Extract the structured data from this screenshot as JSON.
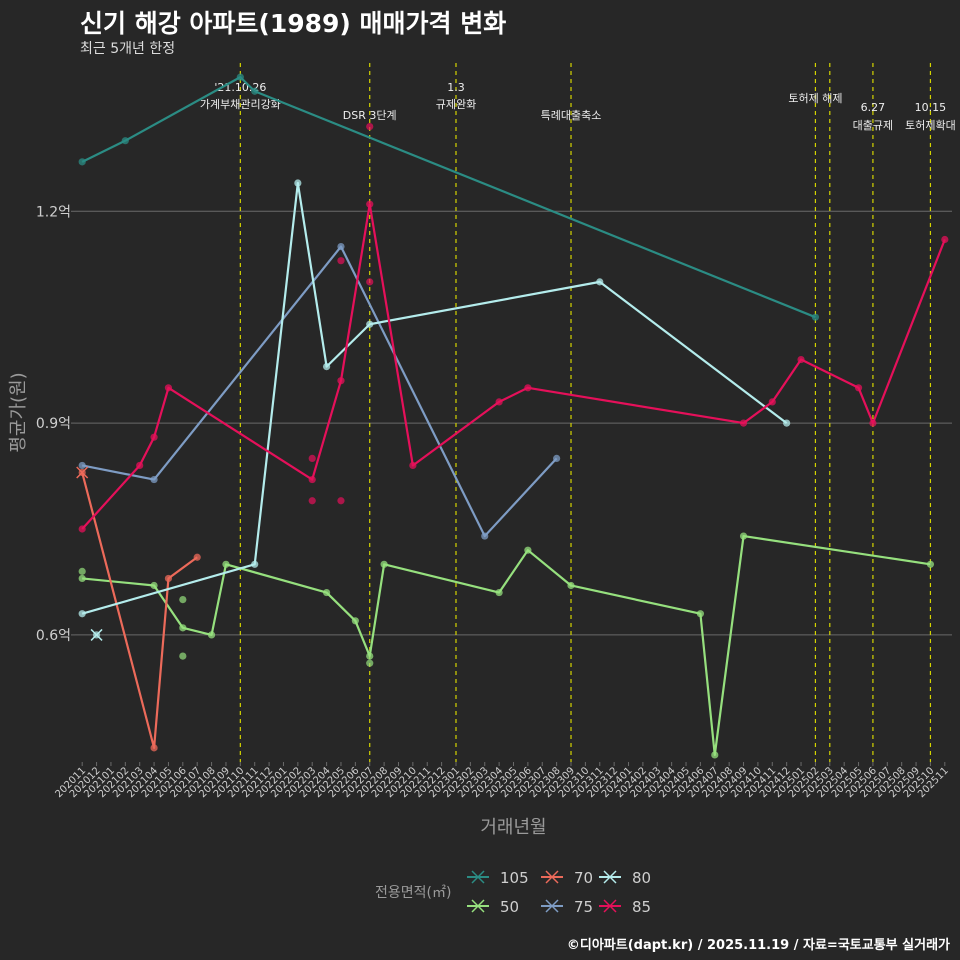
{
  "header": {
    "title": "신기 해강 아파트(1989) 매매가격 변화",
    "subtitle": "최근 5개년 한정"
  },
  "footer": {
    "credit": "©디아파트(dapt.kr) / 2025.11.19 / 자료=국토교통부 실거래가"
  },
  "colors": {
    "background": "#272727",
    "grid": "#6a6a6a",
    "event_line": "#d4d400",
    "axis_text": "#cfcfcf",
    "axis_title": "#9a9a9a"
  },
  "chart_data": {
    "type": "line",
    "xlabel": "거래년월",
    "ylabel": "평균가(원)",
    "ylim": [
      0.42,
      1.41
    ],
    "yticks": [
      {
        "value": 0.6,
        "label": "0.6억"
      },
      {
        "value": 0.9,
        "label": "0.9억"
      },
      {
        "value": 1.2,
        "label": "1.2억"
      }
    ],
    "categories": [
      "202011",
      "202012",
      "202101",
      "202102",
      "202103",
      "202104",
      "202105",
      "202106",
      "202107",
      "202108",
      "202109",
      "202110",
      "202111",
      "202112",
      "202201",
      "202202",
      "202203",
      "202204",
      "202205",
      "202206",
      "202207",
      "202208",
      "202209",
      "202210",
      "202211",
      "202212",
      "202301",
      "202302",
      "202303",
      "202304",
      "202305",
      "202306",
      "202307",
      "202308",
      "202309",
      "202310",
      "202311",
      "202312",
      "202401",
      "202402",
      "202403",
      "202404",
      "202405",
      "202406",
      "202407",
      "202408",
      "202409",
      "202410",
      "202411",
      "202412",
      "202501",
      "202502",
      "202503",
      "202504",
      "202505",
      "202506",
      "202507",
      "202508",
      "202509",
      "202510",
      "202511"
    ],
    "legend_title": "전용면적(㎡)",
    "legend_order": [
      "105",
      "70",
      "80",
      "50",
      "75",
      "85"
    ],
    "series": [
      {
        "name": "105",
        "color": "#2b8c84",
        "points": [
          [
            "202011",
            1.27
          ],
          [
            "202102",
            1.3
          ],
          [
            "202110",
            1.39
          ],
          [
            "202111",
            1.37
          ],
          [
            "202502",
            1.05
          ]
        ],
        "scatter": []
      },
      {
        "name": "50",
        "color": "#96e07e",
        "points": [
          [
            "202011",
            0.68
          ],
          [
            "202104",
            0.67
          ],
          [
            "202106",
            0.61
          ],
          [
            "202108",
            0.6
          ],
          [
            "202109",
            0.7
          ],
          [
            "202204",
            0.66
          ],
          [
            "202206",
            0.62
          ],
          [
            "202207",
            0.57
          ],
          [
            "202208",
            0.7
          ],
          [
            "202304",
            0.66
          ],
          [
            "202306",
            0.72
          ],
          [
            "202309",
            0.67
          ],
          [
            "202406",
            0.63
          ],
          [
            "202407",
            0.43
          ],
          [
            "202409",
            0.74
          ],
          [
            "202510",
            0.7
          ]
        ],
        "scatter": [
          [
            "202011",
            0.69
          ],
          [
            "202106",
            0.65
          ],
          [
            "202106",
            0.57
          ],
          [
            "202207",
            0.56
          ]
        ]
      },
      {
        "name": "70",
        "color": "#ec6a5a",
        "points": [
          [
            "202011",
            0.83
          ],
          [
            "202104",
            0.44
          ],
          [
            "202105",
            0.68
          ],
          [
            "202107",
            0.71
          ]
        ],
        "scatter": []
      },
      {
        "name": "75",
        "color": "#7e9cc4",
        "points": [
          [
            "202011",
            0.84
          ],
          [
            "202104",
            0.82
          ],
          [
            "202205",
            1.15
          ],
          [
            "202303",
            0.74
          ],
          [
            "202308",
            0.85
          ]
        ],
        "scatter": []
      },
      {
        "name": "80",
        "color": "#b4ecec",
        "points": [
          [
            "202011",
            0.63
          ],
          [
            "202111",
            0.7
          ],
          [
            "202202",
            1.24
          ],
          [
            "202204",
            0.98
          ],
          [
            "202207",
            1.04
          ],
          [
            "202311",
            1.1
          ],
          [
            "202412",
            0.9
          ]
        ],
        "scatter": [
          [
            "202012",
            0.6
          ]
        ]
      },
      {
        "name": "85",
        "color": "#e5105a",
        "points": [
          [
            "202011",
            0.75
          ],
          [
            "202103",
            0.84
          ],
          [
            "202104",
            0.88
          ],
          [
            "202105",
            0.95
          ],
          [
            "202203",
            0.82
          ],
          [
            "202205",
            0.96
          ],
          [
            "202207",
            1.21
          ],
          [
            "202210",
            0.84
          ],
          [
            "202304",
            0.93
          ],
          [
            "202306",
            0.95
          ],
          [
            "202409",
            0.9
          ],
          [
            "202411",
            0.93
          ],
          [
            "202501",
            0.99
          ],
          [
            "202505",
            0.95
          ],
          [
            "202506",
            0.9
          ],
          [
            "202511",
            1.16
          ]
        ],
        "scatter": [
          [
            "202203",
            0.85
          ],
          [
            "202203",
            0.79
          ],
          [
            "202205",
            1.13
          ],
          [
            "202205",
            0.79
          ],
          [
            "202207",
            1.32
          ],
          [
            "202207",
            1.1
          ]
        ]
      }
    ],
    "cross_markers": [
      {
        "series": "70",
        "x": "202011",
        "y": 0.83
      },
      {
        "series": "80",
        "x": "202012",
        "y": 0.6
      }
    ],
    "events": [
      {
        "x": "202110",
        "lines": [
          "'21.10.26",
          "가계부채관리강화"
        ],
        "pos": "high"
      },
      {
        "x": "202207",
        "lines": [
          "DSR 3단계"
        ],
        "pos": "low"
      },
      {
        "x": "202301",
        "lines": [
          "1.3",
          "규제완화"
        ],
        "pos": "high"
      },
      {
        "x": "202309",
        "lines": [
          "특례대출축소"
        ],
        "pos": "low"
      },
      {
        "x": "202502",
        "lines": [
          "토허제 해제"
        ],
        "pos": "mid"
      },
      {
        "x": "202503",
        "lines": [],
        "pos": "none"
      },
      {
        "x": "202506",
        "lines": [
          "6.27",
          "대출규제"
        ],
        "pos": "low2"
      },
      {
        "x": "202510",
        "lines": [
          "10.15",
          "토허제확대"
        ],
        "pos": "low2"
      }
    ]
  }
}
